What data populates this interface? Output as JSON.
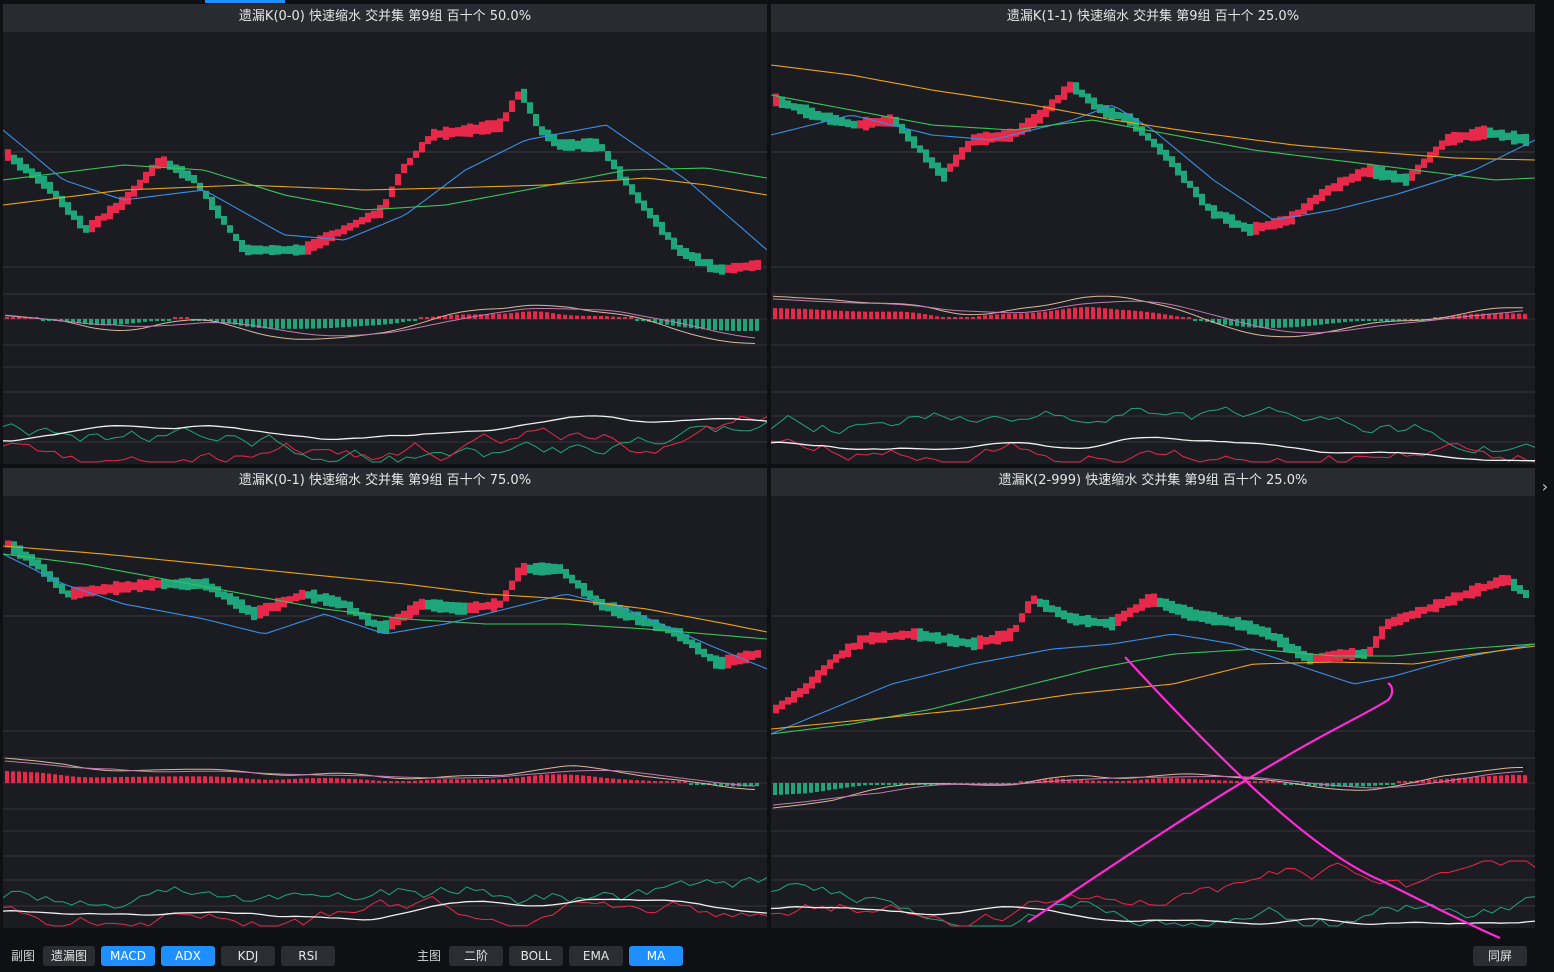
{
  "panels": [
    {
      "id": "p00",
      "title": "遗漏K(0-0)  快速缩水  交并集 第9组  百十个  50.0%"
    },
    {
      "id": "p11",
      "title": "遗漏K(1-1)  快速缩水  交并集 第9组  百十个  25.0%"
    },
    {
      "id": "p01",
      "title": "遗漏K(0-1)  快速缩水  交并集 第9组  百十个  75.0%"
    },
    {
      "id": "p29",
      "title": "遗漏K(2-999)  快速缩水  交并集 第9组  百十个  25.0%"
    }
  ],
  "colors": {
    "up": "#e8284a",
    "down": "#1fa57a",
    "ma5": "#3a8ee6",
    "ma10": "#38c25a",
    "ma20": "#e8a21a",
    "white": "#f0f0f0",
    "pinkline": "#c07ab0",
    "tanline": "#d8b89a",
    "annot": "#ff2bd6"
  },
  "bottom": {
    "sub_label": "副图",
    "sub_buttons": [
      {
        "label": "遗漏图",
        "active": false
      },
      {
        "label": "MACD",
        "active": true
      },
      {
        "label": "ADX",
        "active": true
      },
      {
        "label": "KDJ",
        "active": false
      },
      {
        "label": "RSI",
        "active": false
      }
    ],
    "main_label": "主图",
    "main_buttons": [
      {
        "label": "二阶",
        "active": false
      },
      {
        "label": "BOLL",
        "active": false
      },
      {
        "label": "EMA",
        "active": false
      },
      {
        "label": "MA",
        "active": true
      }
    ],
    "sync_label": "同屏"
  },
  "right_arrow": "›"
}
